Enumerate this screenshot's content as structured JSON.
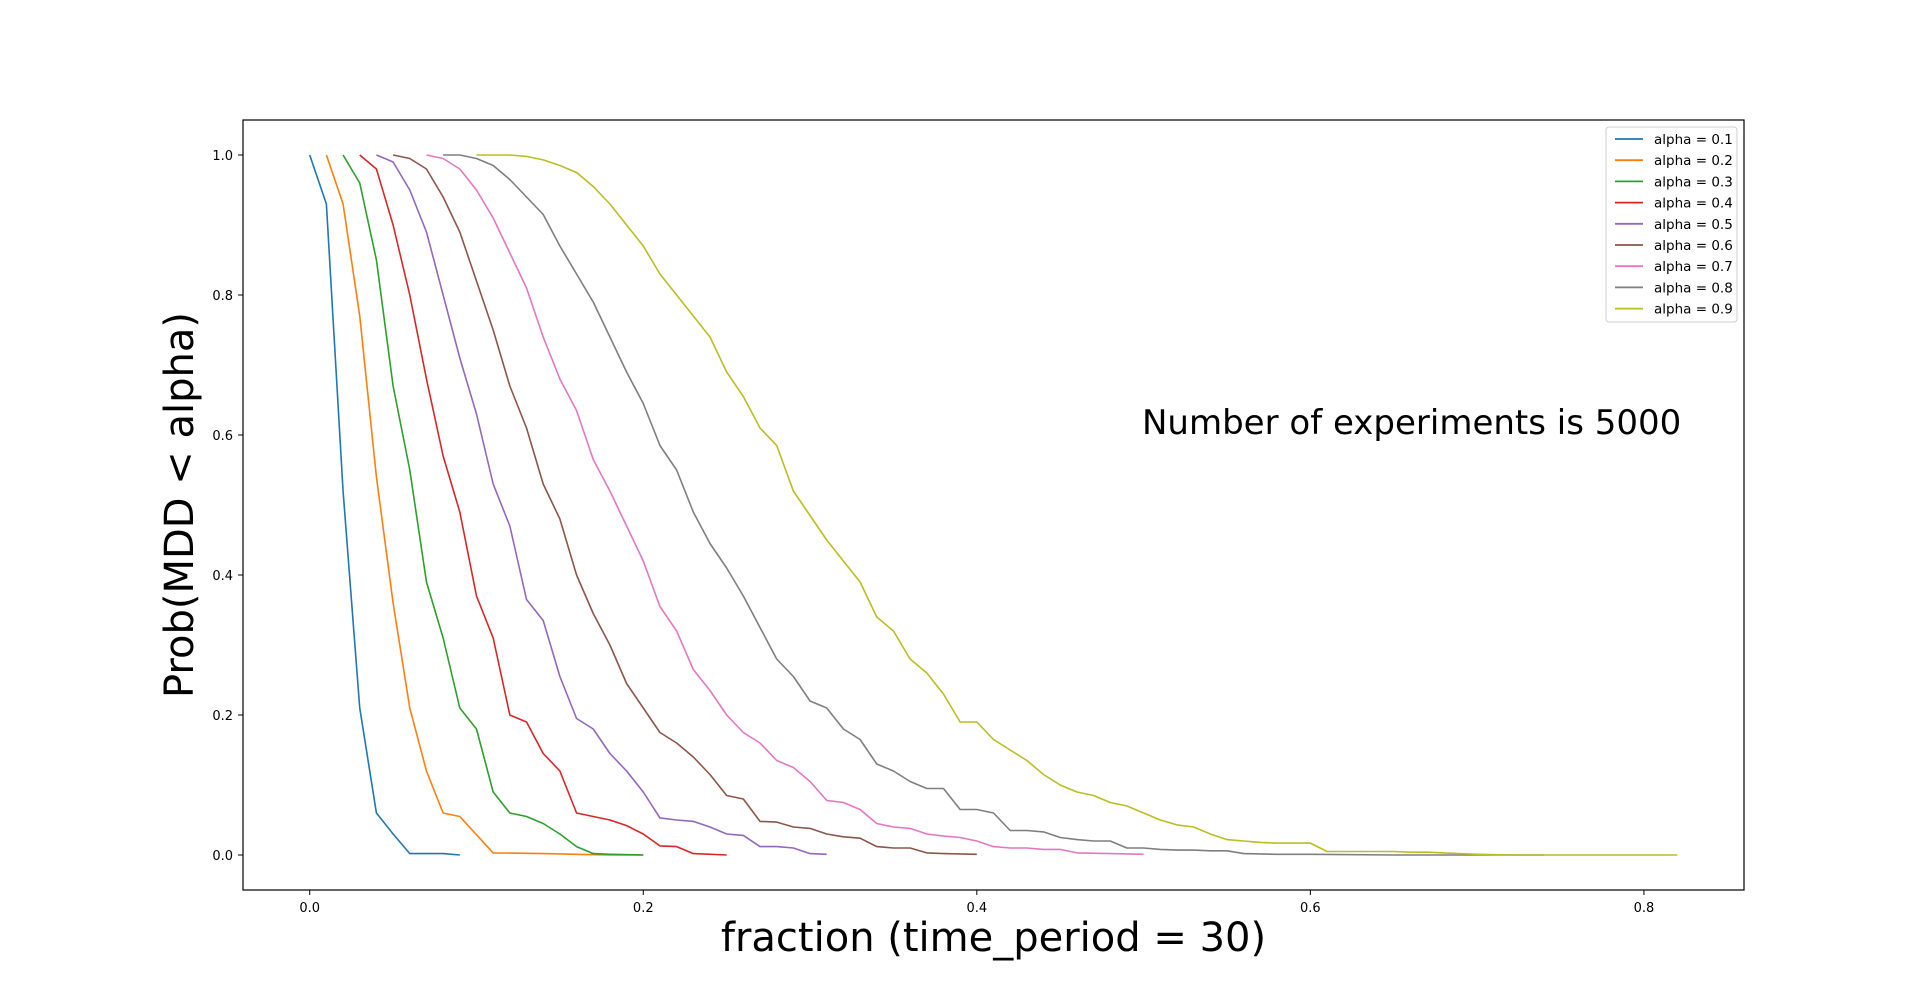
{
  "chart_data": {
    "type": "line",
    "title": "",
    "xlabel": "fraction (time_period = 30)",
    "ylabel": "Prob(MDD < alpha)",
    "xlim": [
      -0.04,
      0.86
    ],
    "ylim": [
      -0.05,
      1.05
    ],
    "xticks": [
      "0.0",
      "0.2",
      "0.4",
      "0.6",
      "0.8"
    ],
    "xtick_values": [
      0.0,
      0.2,
      0.4,
      0.6,
      0.8
    ],
    "yticks": [
      "0.0",
      "0.2",
      "0.4",
      "0.6",
      "0.8",
      "1.0"
    ],
    "ytick_values": [
      0.0,
      0.2,
      0.4,
      0.6,
      0.8,
      1.0
    ],
    "grid": false,
    "legend_position": "top-right",
    "annotation": "Number of experiments is 5000",
    "series": [
      {
        "name": "alpha = 0.1",
        "color": "#1f77b4",
        "x": [
          0.0,
          0.01,
          0.02,
          0.03,
          0.04,
          0.05,
          0.06,
          0.07,
          0.08,
          0.09
        ],
        "y": [
          1.0,
          0.93,
          0.52,
          0.21,
          0.06,
          0.03,
          0.002,
          0.002,
          0.002,
          0.0
        ]
      },
      {
        "name": "alpha = 0.2",
        "color": "#ff7f0e",
        "x": [
          0.01,
          0.02,
          0.03,
          0.04,
          0.05,
          0.06,
          0.07,
          0.08,
          0.09,
          0.11,
          0.14,
          0.16,
          0.18,
          0.2
        ],
        "y": [
          1.0,
          0.93,
          0.77,
          0.54,
          0.36,
          0.21,
          0.12,
          0.06,
          0.055,
          0.003,
          0.002,
          0.001,
          0.0,
          0.0
        ]
      },
      {
        "name": "alpha = 0.3",
        "color": "#2ca02c",
        "x": [
          0.02,
          0.03,
          0.04,
          0.05,
          0.06,
          0.07,
          0.08,
          0.09,
          0.1,
          0.11,
          0.12,
          0.13,
          0.14,
          0.15,
          0.16,
          0.17,
          0.18,
          0.2
        ],
        "y": [
          1.0,
          0.96,
          0.85,
          0.67,
          0.55,
          0.39,
          0.31,
          0.21,
          0.18,
          0.09,
          0.06,
          0.055,
          0.045,
          0.03,
          0.012,
          0.002,
          0.001,
          0.0
        ]
      },
      {
        "name": "alpha = 0.4",
        "color": "#d62728",
        "x": [
          0.03,
          0.04,
          0.05,
          0.06,
          0.07,
          0.08,
          0.09,
          0.1,
          0.11,
          0.12,
          0.13,
          0.14,
          0.15,
          0.16,
          0.17,
          0.18,
          0.19,
          0.2,
          0.21,
          0.22,
          0.23,
          0.25
        ],
        "y": [
          1.0,
          0.98,
          0.9,
          0.8,
          0.68,
          0.57,
          0.49,
          0.37,
          0.31,
          0.2,
          0.19,
          0.145,
          0.12,
          0.06,
          0.055,
          0.05,
          0.042,
          0.03,
          0.013,
          0.012,
          0.002,
          0.0
        ]
      },
      {
        "name": "alpha = 0.5",
        "color": "#9467bd",
        "x": [
          0.04,
          0.05,
          0.06,
          0.07,
          0.08,
          0.09,
          0.1,
          0.11,
          0.12,
          0.13,
          0.14,
          0.15,
          0.16,
          0.17,
          0.18,
          0.19,
          0.2,
          0.21,
          0.22,
          0.23,
          0.24,
          0.25,
          0.26,
          0.27,
          0.28,
          0.29,
          0.3,
          0.31
        ],
        "y": [
          1.0,
          0.99,
          0.95,
          0.89,
          0.8,
          0.71,
          0.63,
          0.53,
          0.47,
          0.365,
          0.335,
          0.255,
          0.195,
          0.18,
          0.145,
          0.12,
          0.09,
          0.053,
          0.05,
          0.048,
          0.04,
          0.03,
          0.028,
          0.012,
          0.012,
          0.01,
          0.002,
          0.001
        ]
      },
      {
        "name": "alpha = 0.6",
        "color": "#8c564b",
        "x": [
          0.05,
          0.06,
          0.07,
          0.08,
          0.09,
          0.1,
          0.11,
          0.12,
          0.13,
          0.14,
          0.15,
          0.16,
          0.17,
          0.18,
          0.19,
          0.2,
          0.21,
          0.22,
          0.23,
          0.24,
          0.25,
          0.26,
          0.27,
          0.28,
          0.29,
          0.3,
          0.31,
          0.32,
          0.33,
          0.34,
          0.35,
          0.36,
          0.37,
          0.38,
          0.4
        ],
        "y": [
          1.0,
          0.995,
          0.98,
          0.94,
          0.89,
          0.82,
          0.75,
          0.67,
          0.61,
          0.53,
          0.48,
          0.4,
          0.345,
          0.3,
          0.245,
          0.21,
          0.175,
          0.16,
          0.14,
          0.115,
          0.085,
          0.08,
          0.048,
          0.047,
          0.04,
          0.038,
          0.03,
          0.026,
          0.024,
          0.012,
          0.01,
          0.01,
          0.003,
          0.002,
          0.001
        ]
      },
      {
        "name": "alpha = 0.7",
        "color": "#e377c2",
        "x": [
          0.07,
          0.08,
          0.09,
          0.1,
          0.11,
          0.12,
          0.13,
          0.14,
          0.15,
          0.16,
          0.17,
          0.18,
          0.19,
          0.2,
          0.21,
          0.22,
          0.23,
          0.24,
          0.25,
          0.26,
          0.27,
          0.28,
          0.29,
          0.3,
          0.31,
          0.32,
          0.33,
          0.34,
          0.35,
          0.36,
          0.37,
          0.38,
          0.39,
          0.4,
          0.41,
          0.42,
          0.43,
          0.44,
          0.45,
          0.46,
          0.48,
          0.5
        ],
        "y": [
          1.0,
          0.995,
          0.98,
          0.95,
          0.91,
          0.86,
          0.81,
          0.74,
          0.68,
          0.635,
          0.565,
          0.52,
          0.47,
          0.42,
          0.355,
          0.32,
          0.265,
          0.235,
          0.2,
          0.175,
          0.16,
          0.135,
          0.125,
          0.105,
          0.078,
          0.075,
          0.065,
          0.045,
          0.04,
          0.038,
          0.03,
          0.027,
          0.025,
          0.02,
          0.012,
          0.01,
          0.01,
          0.008,
          0.008,
          0.003,
          0.002,
          0.001
        ]
      },
      {
        "name": "alpha = 0.8",
        "color": "#7f7f7f",
        "x": [
          0.08,
          0.09,
          0.1,
          0.11,
          0.12,
          0.13,
          0.14,
          0.15,
          0.16,
          0.17,
          0.18,
          0.19,
          0.2,
          0.21,
          0.22,
          0.23,
          0.24,
          0.25,
          0.26,
          0.27,
          0.28,
          0.29,
          0.3,
          0.31,
          0.32,
          0.33,
          0.34,
          0.35,
          0.36,
          0.37,
          0.38,
          0.39,
          0.4,
          0.41,
          0.42,
          0.43,
          0.44,
          0.45,
          0.46,
          0.47,
          0.48,
          0.49,
          0.5,
          0.51,
          0.52,
          0.53,
          0.54,
          0.55,
          0.56,
          0.58,
          0.6,
          0.65,
          0.7,
          0.74
        ],
        "y": [
          1.0,
          1.0,
          0.995,
          0.985,
          0.965,
          0.94,
          0.915,
          0.87,
          0.83,
          0.79,
          0.74,
          0.69,
          0.645,
          0.585,
          0.55,
          0.49,
          0.445,
          0.41,
          0.37,
          0.325,
          0.28,
          0.255,
          0.22,
          0.21,
          0.18,
          0.165,
          0.13,
          0.12,
          0.105,
          0.095,
          0.095,
          0.065,
          0.065,
          0.06,
          0.035,
          0.035,
          0.033,
          0.025,
          0.022,
          0.02,
          0.02,
          0.01,
          0.01,
          0.008,
          0.007,
          0.007,
          0.006,
          0.006,
          0.002,
          0.001,
          0.001,
          0.0,
          0.0,
          0.0
        ]
      },
      {
        "name": "alpha = 0.9",
        "color": "#bcbd22",
        "x": [
          0.1,
          0.11,
          0.12,
          0.13,
          0.14,
          0.15,
          0.16,
          0.17,
          0.18,
          0.19,
          0.2,
          0.21,
          0.22,
          0.23,
          0.24,
          0.25,
          0.26,
          0.27,
          0.28,
          0.29,
          0.3,
          0.31,
          0.32,
          0.33,
          0.34,
          0.35,
          0.36,
          0.37,
          0.38,
          0.39,
          0.4,
          0.41,
          0.42,
          0.43,
          0.44,
          0.45,
          0.46,
          0.47,
          0.48,
          0.49,
          0.5,
          0.51,
          0.52,
          0.53,
          0.54,
          0.55,
          0.56,
          0.57,
          0.58,
          0.59,
          0.6,
          0.61,
          0.62,
          0.63,
          0.64,
          0.65,
          0.66,
          0.67,
          0.68,
          0.7,
          0.72,
          0.75,
          0.78,
          0.82
        ],
        "y": [
          1.0,
          1.0,
          1.0,
          0.998,
          0.993,
          0.985,
          0.975,
          0.955,
          0.93,
          0.9,
          0.87,
          0.83,
          0.8,
          0.77,
          0.74,
          0.69,
          0.655,
          0.61,
          0.585,
          0.52,
          0.485,
          0.45,
          0.42,
          0.39,
          0.34,
          0.32,
          0.28,
          0.26,
          0.23,
          0.19,
          0.19,
          0.165,
          0.15,
          0.135,
          0.115,
          0.1,
          0.09,
          0.085,
          0.075,
          0.07,
          0.06,
          0.05,
          0.043,
          0.04,
          0.03,
          0.022,
          0.02,
          0.018,
          0.017,
          0.017,
          0.017,
          0.005,
          0.005,
          0.005,
          0.005,
          0.005,
          0.004,
          0.004,
          0.003,
          0.001,
          0.0,
          0.0,
          0.0,
          0.0
        ]
      }
    ]
  }
}
